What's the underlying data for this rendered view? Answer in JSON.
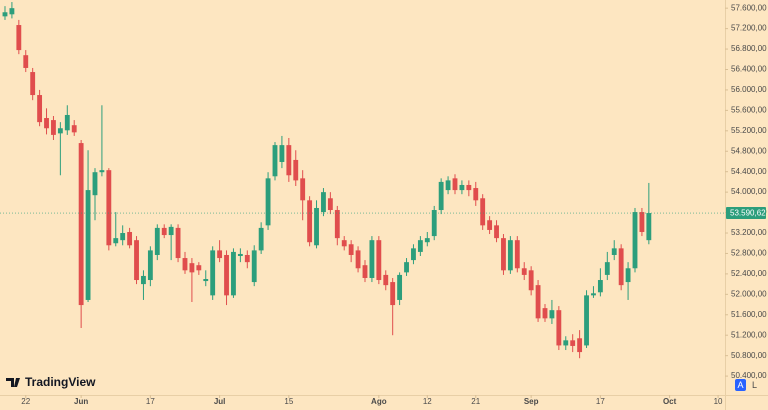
{
  "chart_data": {
    "type": "candlestick",
    "brand": "TradingView",
    "controls": [
      "A",
      "L"
    ],
    "up_color": "#2c9e7c",
    "down_color": "#e04d4d",
    "xlim": [
      -0.72,
      104
    ],
    "xticks": [
      {
        "value": 3,
        "label": "22"
      },
      {
        "value": 11,
        "label": "Jun"
      },
      {
        "value": 21,
        "label": "17"
      },
      {
        "value": 31,
        "label": "Jul"
      },
      {
        "value": 41,
        "label": "15"
      },
      {
        "value": 54,
        "label": "Ago"
      },
      {
        "value": 61,
        "label": "12"
      },
      {
        "value": 68,
        "label": "21"
      },
      {
        "value": 76,
        "label": "Sep"
      },
      {
        "value": 86,
        "label": "17"
      },
      {
        "value": 96,
        "label": "Oct"
      },
      {
        "value": 103,
        "label": "10"
      }
    ],
    "ylim": [
      50030,
      57760
    ],
    "yticks": [
      {
        "value": 50400,
        "label": "50.400,00"
      },
      {
        "value": 50800,
        "label": "50.800,00"
      },
      {
        "value": 51200,
        "label": "51.200,00"
      },
      {
        "value": 51600,
        "label": "51.600,00"
      },
      {
        "value": 52000,
        "label": "52.000,00"
      },
      {
        "value": 52400,
        "label": "52.400,00"
      },
      {
        "value": 52800,
        "label": "52.800,00"
      },
      {
        "value": 53200,
        "label": "53.200,00"
      },
      {
        "value": 53600,
        "label": "53.600,00"
      },
      {
        "value": 54000,
        "label": "54.000,00"
      },
      {
        "value": 54400,
        "label": "54.400,00"
      },
      {
        "value": 54800,
        "label": "54.800,00"
      },
      {
        "value": 55200,
        "label": "55.200,00"
      },
      {
        "value": 55600,
        "label": "55.600,00"
      },
      {
        "value": 56000,
        "label": "56.000,00"
      },
      {
        "value": 56400,
        "label": "56.400,00"
      },
      {
        "value": 56800,
        "label": "56.800,00"
      },
      {
        "value": 57200,
        "label": "57.200,00"
      },
      {
        "value": 57600,
        "label": "57.600,00"
      }
    ],
    "last_price": {
      "value": 53590.62,
      "label": "53.590,62"
    },
    "open": [
      57440,
      57480,
      57270,
      56680,
      56350,
      55900,
      55450,
      55410,
      55150,
      55210,
      55310,
      54960,
      51890,
      53940,
      54390,
      54430,
      53000,
      53060,
      53220,
      53060,
      52200,
      52280,
      52770,
      53300,
      53160,
      53300,
      52710,
      52610,
      52570,
      52260,
      51980,
      52860,
      52770,
      51980,
      52750,
      52770,
      52240,
      52860,
      53350,
      54310,
      54590,
      54920,
      54630,
      54270,
      53840,
      52960,
      53610,
      53880,
      53650,
      53060,
      52980,
      52860,
      52570,
      52320,
      53060,
      52380,
      52240,
      51890,
      52430,
      52670,
      52830,
      53020,
      53140,
      53650,
      54040,
      54270,
      54040,
      54140,
      54080,
      53880,
      53450,
      53350,
      53100,
      52470,
      53060,
      52510,
      52470,
      52180,
      51730,
      51530,
      51690,
      51000,
      51100,
      51140,
      51000,
      51980,
      52040,
      52380,
      52770,
      52900,
      52240,
      52510,
      53610,
      53060
    ],
    "high": [
      57640,
      57720,
      57370,
      56780,
      56430,
      56000,
      55640,
      55490,
      55370,
      55700,
      55410,
      55020,
      54820,
      54470,
      55700,
      54470,
      53610,
      53350,
      53300,
      53140,
      52470,
      52940,
      53370,
      53370,
      53370,
      53370,
      52830,
      52710,
      52630,
      52470,
      52940,
      53060,
      52860,
      52900,
      52900,
      52860,
      52960,
      53410,
      54390,
      54980,
      55100,
      55060,
      54820,
      54430,
      53920,
      53840,
      54080,
      54000,
      53730,
      53140,
      53060,
      52940,
      52670,
      53140,
      53140,
      52470,
      52320,
      52430,
      52710,
      52980,
      53140,
      53220,
      53730,
      54270,
      54310,
      54350,
      54230,
      54230,
      54200,
      53960,
      53530,
      53450,
      53180,
      53140,
      53140,
      52630,
      52550,
      52280,
      51810,
      51890,
      51770,
      51180,
      51220,
      51300,
      52080,
      52160,
      52510,
      52830,
      53060,
      52980,
      52630,
      53690,
      53690,
      54180
    ],
    "low": [
      57370,
      57400,
      56700,
      56350,
      55800,
      55290,
      55130,
      55020,
      54330,
      55120,
      55100,
      51340,
      51850,
      53450,
      54310,
      52860,
      52940,
      52960,
      52900,
      52200,
      51890,
      52160,
      52670,
      53100,
      52670,
      52630,
      52400,
      51850,
      52380,
      52160,
      51890,
      52630,
      51790,
      51930,
      52630,
      52510,
      52160,
      52790,
      53260,
      54230,
      54470,
      54200,
      54120,
      53450,
      52940,
      52900,
      53530,
      53570,
      52960,
      52860,
      52630,
      52430,
      52240,
      52240,
      52200,
      52080,
      51200,
      51790,
      52360,
      52590,
      52750,
      52940,
      53060,
      53570,
      53960,
      53960,
      53960,
      53920,
      53730,
      53260,
      53180,
      53020,
      52380,
      52400,
      52430,
      52280,
      51980,
      51460,
      51460,
      51420,
      50910,
      50910,
      50870,
      50750,
      50950,
      51930,
      51960,
      52280,
      52670,
      52080,
      51890,
      52430,
      53140,
      52980
    ],
    "close": [
      57520,
      57600,
      56780,
      56430,
      55900,
      55370,
      55250,
      55120,
      55250,
      55510,
      55170,
      51790,
      54040,
      54390,
      54430,
      52960,
      53100,
      53200,
      52960,
      52280,
      52360,
      52860,
      53300,
      53160,
      53320,
      52710,
      52470,
      52430,
      52470,
      52300,
      52860,
      52710,
      51980,
      52830,
      52790,
      52630,
      52860,
      53300,
      54270,
      54920,
      54920,
      54330,
      54230,
      53840,
      53020,
      53690,
      54000,
      53650,
      53100,
      52940,
      52770,
      52510,
      52320,
      53060,
      52280,
      52180,
      51790,
      52380,
      52630,
      52900,
      53060,
      53100,
      53650,
      54200,
      54230,
      54040,
      54140,
      54040,
      53840,
      53350,
      53260,
      53100,
      52470,
      53060,
      52510,
      52380,
      52080,
      51530,
      51530,
      51690,
      51000,
      51100,
      50990,
      50870,
      51980,
      52020,
      52280,
      52630,
      52900,
      52180,
      52510,
      53610,
      53220,
      53590.62
    ]
  }
}
